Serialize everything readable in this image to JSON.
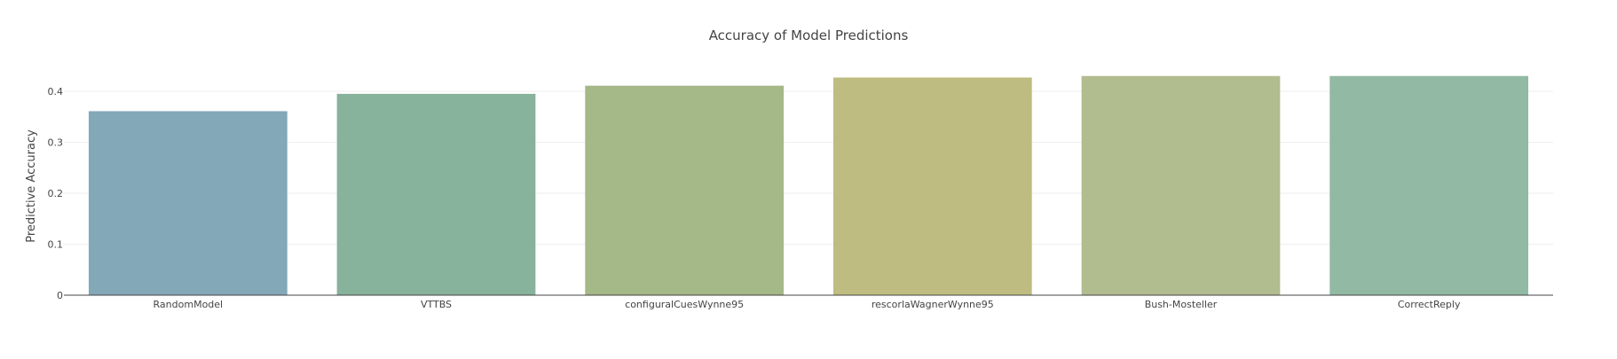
{
  "chart_data": {
    "type": "bar",
    "title": "Accuracy of Model Predictions",
    "xlabel": "",
    "ylabel": "Predictive Accuracy",
    "categories": [
      "RandomModel",
      "VTTBS",
      "configuralCuesWynne95",
      "rescorlaWagnerWynne95",
      "Bush-Mosteller",
      "CorrectReply"
    ],
    "values": [
      0.361,
      0.395,
      0.411,
      0.427,
      0.43,
      0.43
    ],
    "colors": [
      "#83a8b7",
      "#87b29b",
      "#a5b887",
      "#bebc80",
      "#b1bc8f",
      "#91b9a3"
    ],
    "ylim": [
      0,
      0.44
    ],
    "yticks": [
      0,
      0.1,
      0.2,
      0.3,
      0.4
    ],
    "ytick_labels": [
      "0",
      "0.1",
      "0.2",
      "0.3",
      "0.4"
    ],
    "grid": true
  }
}
